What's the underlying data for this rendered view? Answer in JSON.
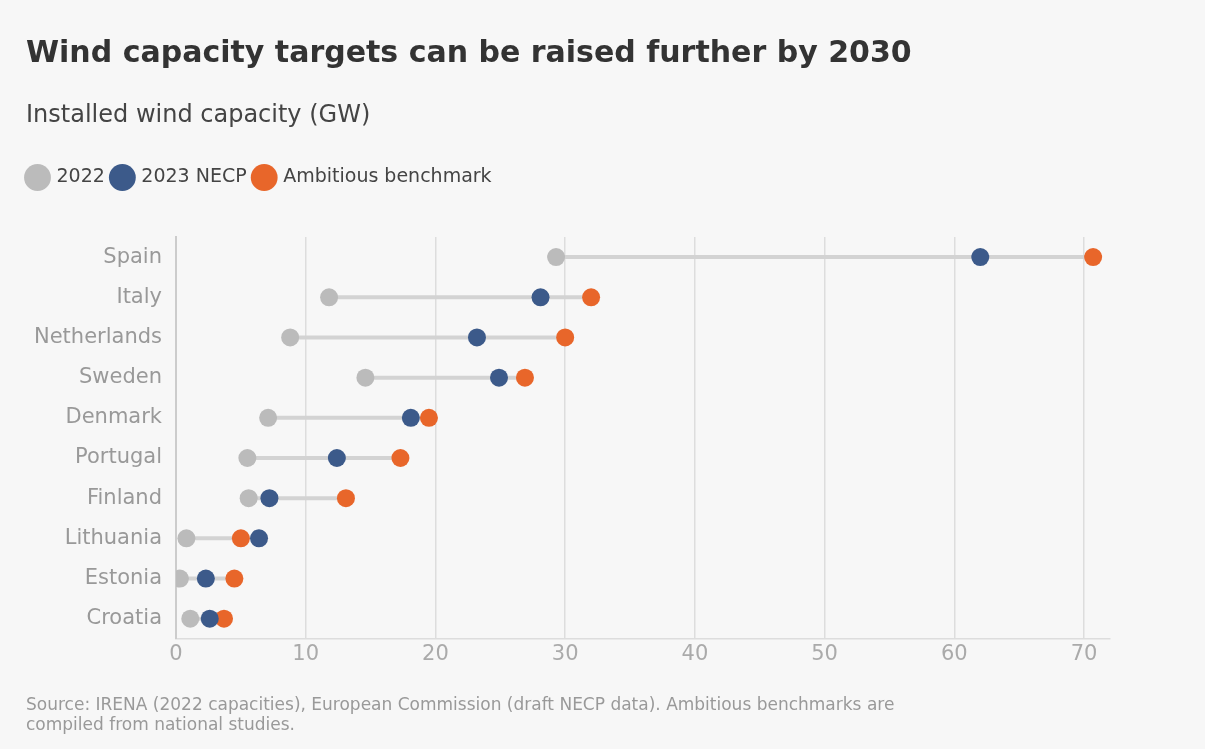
{
  "chart_data": {
    "type": "scatter",
    "title": "Wind capacity targets can be raised further by 2030",
    "subtitle": "Installed wind capacity (GW)",
    "orientation": "horizontal",
    "categories": [
      "Spain",
      "Italy",
      "Netherlands",
      "Sweden",
      "Denmark",
      "Portugal",
      "Finland",
      "Lithuania",
      "Estonia",
      "Croatia"
    ],
    "series": [
      {
        "name": "2022",
        "color": "#bbbbbb",
        "values": [
          29.3,
          11.8,
          8.8,
          14.6,
          7.1,
          5.5,
          5.6,
          0.8,
          0.3,
          1.1
        ]
      },
      {
        "name": "2023 NECP",
        "color": "#3c5a8a",
        "values": [
          62.0,
          28.1,
          23.2,
          24.9,
          18.1,
          12.4,
          7.2,
          6.4,
          2.3,
          2.6
        ]
      },
      {
        "name": "Ambitious benchmark",
        "color": "#e8662a",
        "values": [
          70.7,
          32.0,
          30.0,
          26.9,
          19.5,
          17.3,
          13.1,
          5.0,
          4.5,
          3.7
        ]
      }
    ],
    "xlim": [
      0,
      72
    ],
    "xticks": [
      0,
      10,
      20,
      30,
      40,
      50,
      60,
      70
    ],
    "grid": "x",
    "legend": "top left",
    "marker": "circle",
    "annotations": [
      "Source: IRENA (2022 capacities), European Commission (draft NECP data). Ambitious benchmarks are compiled from national studies."
    ]
  }
}
